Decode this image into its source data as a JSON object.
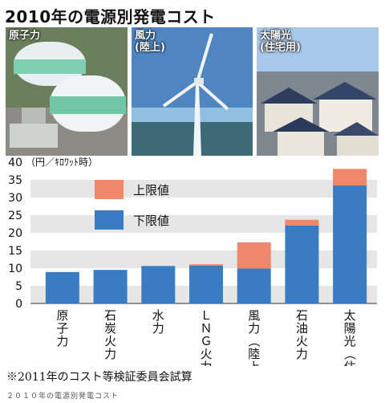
{
  "title": "2010年の電源別発電コスト",
  "photos": [
    {
      "label": "原子力"
    },
    {
      "label": "風力\n(陸上)"
    },
    {
      "label": "太陽光\n(住宅用)"
    }
  ],
  "chart_data": {
    "type": "bar",
    "stacked": true,
    "yunit": "（円／ｷﾛﾜｯﾄ時）",
    "ylim": [
      0,
      40
    ],
    "yticks": [
      0,
      5,
      10,
      15,
      20,
      25,
      30,
      35,
      40
    ],
    "grid": "horizontal bands",
    "categories": [
      "原子力",
      "石炭火力",
      "水力",
      "ＬＮＧ火力",
      "風力（陸上）",
      "石油火力",
      "太陽光（住宅用）"
    ],
    "series": [
      {
        "name": "下限値",
        "color": "#3a7cc4",
        "values": [
          8.9,
          9.5,
          10.6,
          10.7,
          9.9,
          22.1,
          33.4
        ]
      },
      {
        "name": "上限値",
        "color": "#f0876a",
        "values": [
          0,
          0,
          0,
          0.4,
          7.4,
          1.6,
          4.7
        ]
      }
    ],
    "legend_position": "top-left"
  },
  "note": "※2011年のコスト等検証委員会試算",
  "caption": "２０１０年の電源別発電コスト"
}
